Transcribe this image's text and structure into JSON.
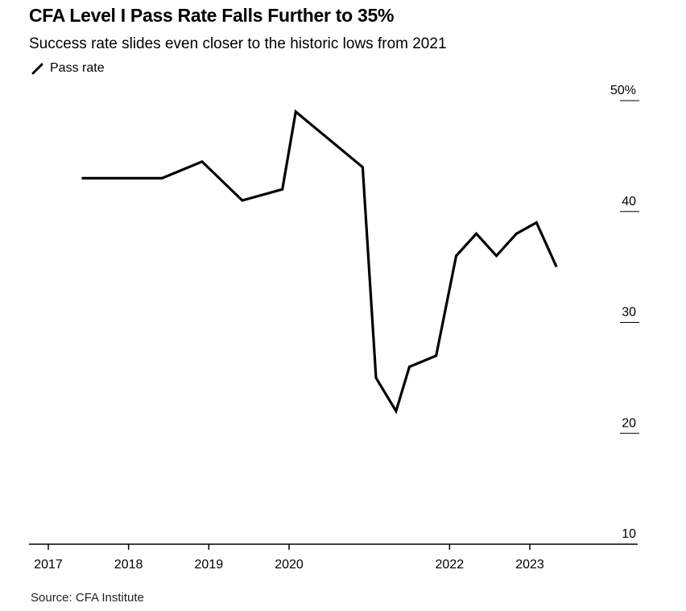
{
  "header": {
    "title": "CFA Level I Pass Rate Falls Further to 35%",
    "subtitle": "Success rate slides even closer to the historic lows from 2021"
  },
  "legend": {
    "label": "Pass rate",
    "color": "#000000"
  },
  "source": "Source: CFA Institute",
  "chart_data": {
    "type": "line",
    "title": "CFA Level I Pass Rate Falls Further to 35%",
    "subtitle": "Success rate slides even closer to the historic lows from 2021",
    "xlabel": "",
    "ylabel": "",
    "ylim": [
      10,
      50
    ],
    "y_ticks": [
      10,
      20,
      30,
      40,
      50
    ],
    "y_tick_labels": [
      "10",
      "20",
      "30",
      "40",
      "50%"
    ],
    "y_axis_position": "right",
    "x_ticks": [
      "2017",
      "2018",
      "2019",
      "2020",
      "2022",
      "2023"
    ],
    "grid": false,
    "legend_position": "top-left",
    "series": [
      {
        "name": "Pass rate",
        "color": "#000000",
        "points": [
          {
            "x": "2017-06",
            "y": 43
          },
          {
            "x": "2018-06",
            "y": 43
          },
          {
            "x": "2018-12",
            "y": 44.5
          },
          {
            "x": "2019-06",
            "y": 41
          },
          {
            "x": "2019-12",
            "y": 42
          },
          {
            "x": "2020-02",
            "y": 49
          },
          {
            "x": "2020-12",
            "y": 44
          },
          {
            "x": "2021-02",
            "y": 25
          },
          {
            "x": "2021-05",
            "y": 22
          },
          {
            "x": "2021-07",
            "y": 26
          },
          {
            "x": "2021-11",
            "y": 27
          },
          {
            "x": "2022-02",
            "y": 36
          },
          {
            "x": "2022-05",
            "y": 38
          },
          {
            "x": "2022-08",
            "y": 36
          },
          {
            "x": "2022-11",
            "y": 38
          },
          {
            "x": "2023-02",
            "y": 39
          },
          {
            "x": "2023-05",
            "y": 35
          }
        ]
      }
    ]
  }
}
